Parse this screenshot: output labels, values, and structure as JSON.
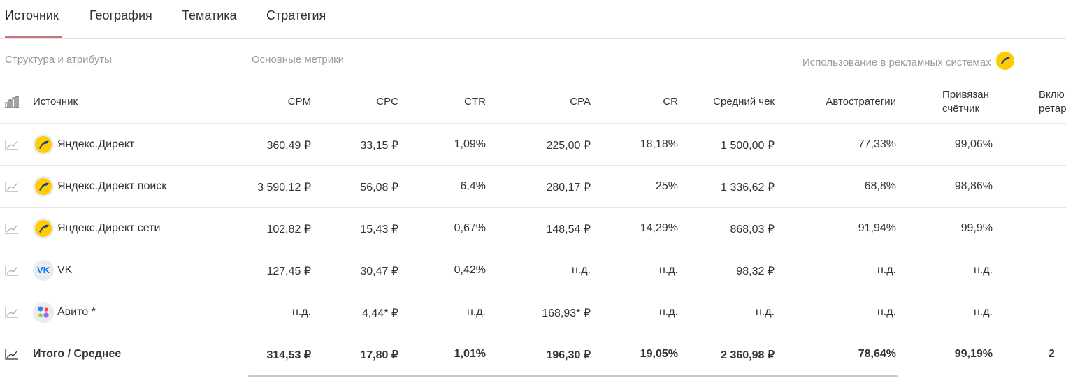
{
  "tabs": [
    {
      "label": "Источник"
    },
    {
      "label": "География"
    },
    {
      "label": "Тематика"
    },
    {
      "label": "Стратегия"
    }
  ],
  "groups": {
    "structure": "Структура и атрибуты",
    "metrics": "Основные метрики",
    "ads": "Использование в рекламных системах"
  },
  "columns": {
    "source": "Источник",
    "cpm": "CPM",
    "cpc": "CPC",
    "ctr": "CTR",
    "cpa": "CPA",
    "cr": "CR",
    "avg_check": "Средний чек",
    "autostrategies": "Автостратегии",
    "counter_line1": "Привязан",
    "counter_line2": "счётчик",
    "retarget_line1": "Вклю",
    "retarget_line2": "ретар"
  },
  "rows": [
    {
      "name": "Яндекс.Директ",
      "icon": "yandex-direct-icon",
      "cpm": "360,49 ₽",
      "cpc": "33,15 ₽",
      "ctr": "1,09%",
      "cpa": "225,00 ₽",
      "cr": "18,18%",
      "avg_check": "1 500,00 ₽",
      "autostrategies": "77,33%",
      "counter": "99,06%"
    },
    {
      "name": "Яндекс.Директ поиск",
      "icon": "yandex-direct-icon",
      "cpm": "3 590,12 ₽",
      "cpc": "56,08 ₽",
      "ctr": "6,4%",
      "cpa": "280,17 ₽",
      "cr": "25%",
      "avg_check": "1 336,62 ₽",
      "autostrategies": "68,8%",
      "counter": "98,86%"
    },
    {
      "name": "Яндекс.Директ сети",
      "icon": "yandex-direct-icon",
      "cpm": "102,82 ₽",
      "cpc": "15,43 ₽",
      "ctr": "0,67%",
      "cpa": "148,54 ₽",
      "cr": "14,29%",
      "avg_check": "868,03 ₽",
      "autostrategies": "91,94%",
      "counter": "99,9%"
    },
    {
      "name": "VK",
      "icon": "vk-icon",
      "logo_text": "VK",
      "cpm": "127,45 ₽",
      "cpc": "30,47 ₽",
      "ctr": "0,42%",
      "cpa": "н.д.",
      "cr": "н.д.",
      "avg_check": "98,32 ₽",
      "autostrategies": "н.д.",
      "counter": "н.д."
    },
    {
      "name": "Авито *",
      "icon": "avito-icon",
      "cpm": "н.д.",
      "cpc": "4,44* ₽",
      "ctr": "н.д.",
      "cpa": "168,93* ₽",
      "cr": "н.д.",
      "avg_check": "н.д.",
      "autostrategies": "н.д.",
      "counter": "н.д."
    }
  ],
  "total": {
    "name": "Итого / Среднее",
    "cpm": "314,53 ₽",
    "cpc": "17,80 ₽",
    "ctr": "1,01%",
    "cpa": "196,30 ₽",
    "cr": "19,05%",
    "avg_check": "2 360,98 ₽",
    "autostrategies": "78,64%",
    "counter": "99,19%",
    "retarget_partial": "2"
  },
  "colors": {
    "accent_underline": "#c5767c",
    "yandex_yellow": "#ffcc00",
    "vk_blue": "#0077ff",
    "grid": "#e4e4e4",
    "muted_text": "#9a9a9a"
  }
}
